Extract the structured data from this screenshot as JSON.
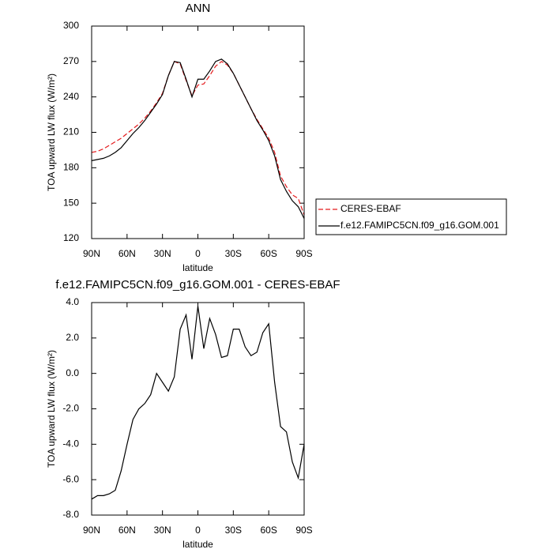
{
  "chart_data": [
    {
      "type": "line",
      "title": "ANN",
      "x_label": "latitude",
      "y_label": "TOA upward LW flux (W/m²)",
      "x": [
        90,
        85,
        80,
        75,
        70,
        65,
        60,
        55,
        50,
        45,
        40,
        35,
        30,
        25,
        20,
        15,
        10,
        5,
        0,
        -5,
        -10,
        -15,
        -20,
        -25,
        -30,
        -35,
        -40,
        -45,
        -50,
        -55,
        -60,
        -65,
        -70,
        -75,
        -80,
        -85,
        -90
      ],
      "xlim": [
        90,
        -90
      ],
      "xticks": [
        {
          "value": 90,
          "label": "90N"
        },
        {
          "value": 60,
          "label": "60N"
        },
        {
          "value": 30,
          "label": "30N"
        },
        0,
        {
          "value": -30,
          "label": "30S"
        },
        {
          "value": -60,
          "label": "60S"
        },
        {
          "value": -90,
          "label": "90S"
        }
      ],
      "ylim": [
        120,
        300
      ],
      "yticks": [
        120,
        150,
        180,
        210,
        240,
        270,
        300
      ],
      "legend": "right",
      "series": [
        {
          "name": "CERES-EBAF",
          "color": "#e41a1c",
          "line_style": "dashed",
          "values": [
            193,
            194,
            196,
            199,
            202,
            205,
            209,
            213,
            217,
            222,
            228,
            235,
            243,
            258,
            270,
            268,
            254,
            241,
            250,
            251,
            258,
            266,
            270,
            267,
            260,
            250,
            240,
            230,
            221,
            213,
            205,
            193,
            173,
            164,
            157,
            154,
            140
          ]
        },
        {
          "name": "f.e12.FAMIPC5CN.f09_g16.GOM.001",
          "color": "#000000",
          "line_style": "solid",
          "values": [
            186,
            187,
            188,
            190,
            193,
            197,
            203,
            209,
            214,
            220,
            227,
            234,
            242,
            258,
            270,
            269,
            255,
            240,
            255,
            255,
            262,
            270,
            272,
            268,
            260,
            250,
            240,
            230,
            220,
            212,
            203,
            190,
            170,
            160,
            152,
            147,
            137
          ]
        }
      ]
    },
    {
      "type": "line",
      "title": "f.e12.FAMIPC5CN.f09_g16.GOM.001 - CERES-EBAF",
      "x_label": "latitude",
      "y_label": "TOA upward LW flux (W/m²)",
      "x": [
        90,
        85,
        80,
        75,
        70,
        65,
        60,
        55,
        50,
        45,
        40,
        35,
        30,
        25,
        20,
        15,
        10,
        5,
        0,
        -5,
        -10,
        -15,
        -20,
        -25,
        -30,
        -35,
        -40,
        -45,
        -50,
        -55,
        -60,
        -65,
        -70,
        -75,
        -80,
        -85,
        -90
      ],
      "xlim": [
        90,
        -90
      ],
      "xticks": [
        {
          "value": 90,
          "label": "90N"
        },
        {
          "value": 60,
          "label": "60N"
        },
        {
          "value": 30,
          "label": "30N"
        },
        0,
        {
          "value": -30,
          "label": "30S"
        },
        {
          "value": -60,
          "label": "60S"
        },
        {
          "value": -90,
          "label": "90S"
        }
      ],
      "ylim": [
        -8,
        4
      ],
      "yticks": [
        {
          "value": -8,
          "label": "-8.0"
        },
        {
          "value": -6,
          "label": "-6.0"
        },
        {
          "value": -4,
          "label": "-4.0"
        },
        {
          "value": -2,
          "label": "-2.0"
        },
        {
          "value": 0,
          "label": "0.0"
        },
        {
          "value": 2,
          "label": "2.0"
        },
        {
          "value": 4,
          "label": "4.0"
        }
      ],
      "color": "#000000",
      "values": [
        -7.1,
        -6.9,
        -6.9,
        -6.8,
        -6.6,
        -5.5,
        -4.0,
        -2.6,
        -2.0,
        -1.7,
        -1.2,
        0.0,
        -0.5,
        -1.0,
        -0.2,
        2.5,
        3.3,
        0.8,
        3.8,
        1.4,
        3.1,
        2.2,
        0.9,
        1.0,
        2.5,
        2.5,
        1.5,
        1.0,
        1.2,
        2.3,
        2.8,
        -0.5,
        -3.0,
        -3.3,
        -5.0,
        -5.9,
        -4.0
      ]
    }
  ]
}
